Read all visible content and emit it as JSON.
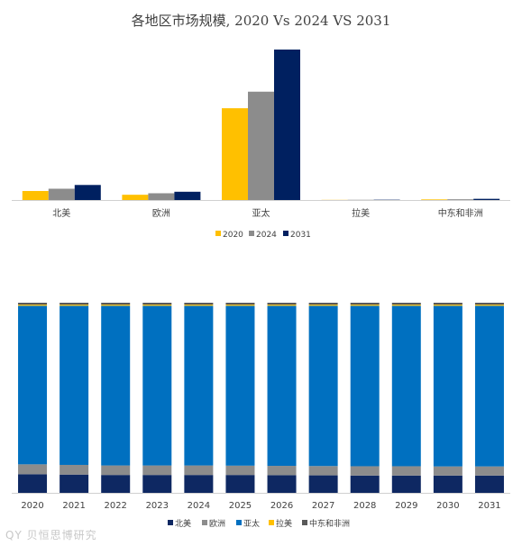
{
  "title": "各地区市场规模, 2020 Vs 2024 VS 2031",
  "watermark": "QY 贝恒思博研究",
  "colors": {
    "north_america": "#0e2862",
    "europe": "#8c8c8c",
    "asia_pacific": "#0070c0",
    "latam": "#ffc000",
    "mea": "#595959",
    "y2020": "#ffc000",
    "y2024": "#8c8c8c",
    "y2031": "#002060"
  },
  "chart_data": [
    {
      "type": "bar",
      "title": "各地区市场规模, 2020 Vs 2024 VS 2031",
      "categories": [
        "北美",
        "欧洲",
        "亚太",
        "拉美",
        "中东和非洲"
      ],
      "series": [
        {
          "name": "2020",
          "values": [
            6,
            3.5,
            61,
            0.1,
            0.4
          ]
        },
        {
          "name": "2024",
          "values": [
            7.5,
            4.5,
            72,
            0.15,
            0.5
          ]
        },
        {
          "name": "2031",
          "values": [
            10,
            5.5,
            100,
            0.2,
            0.8
          ]
        }
      ],
      "ylim": [
        0,
        100
      ],
      "grid": false,
      "legend": "bottom"
    },
    {
      "type": "bar",
      "stacked": "percent",
      "categories": [
        "2020",
        "2021",
        "2022",
        "2023",
        "2024",
        "2025",
        "2026",
        "2027",
        "2028",
        "2029",
        "2030",
        "2031"
      ],
      "series": [
        {
          "name": "北美",
          "values": [
            9.8,
            9.6,
            9.4,
            9.4,
            9.4,
            9.4,
            9.3,
            9.2,
            9.1,
            9.1,
            9.1,
            9.1
          ]
        },
        {
          "name": "欧洲",
          "values": [
            5.2,
            5.1,
            5.0,
            5.0,
            5.0,
            4.9,
            4.9,
            4.9,
            4.9,
            4.9,
            4.8,
            4.8
          ]
        },
        {
          "name": "亚太",
          "values": [
            83.4,
            83.7,
            84.0,
            84.0,
            84.0,
            84.1,
            84.2,
            84.3,
            84.4,
            84.4,
            84.5,
            84.5
          ]
        },
        {
          "name": "拉美",
          "values": [
            0.6,
            0.6,
            0.6,
            0.6,
            0.6,
            0.6,
            0.6,
            0.6,
            0.6,
            0.6,
            0.6,
            0.6
          ]
        },
        {
          "name": "中东和非洲",
          "values": [
            1.0,
            1.0,
            1.0,
            1.0,
            1.0,
            1.0,
            1.0,
            1.0,
            1.0,
            1.0,
            1.0,
            1.0
          ]
        }
      ],
      "ylim": [
        0,
        100
      ],
      "grid": false,
      "legend": "bottom"
    }
  ]
}
